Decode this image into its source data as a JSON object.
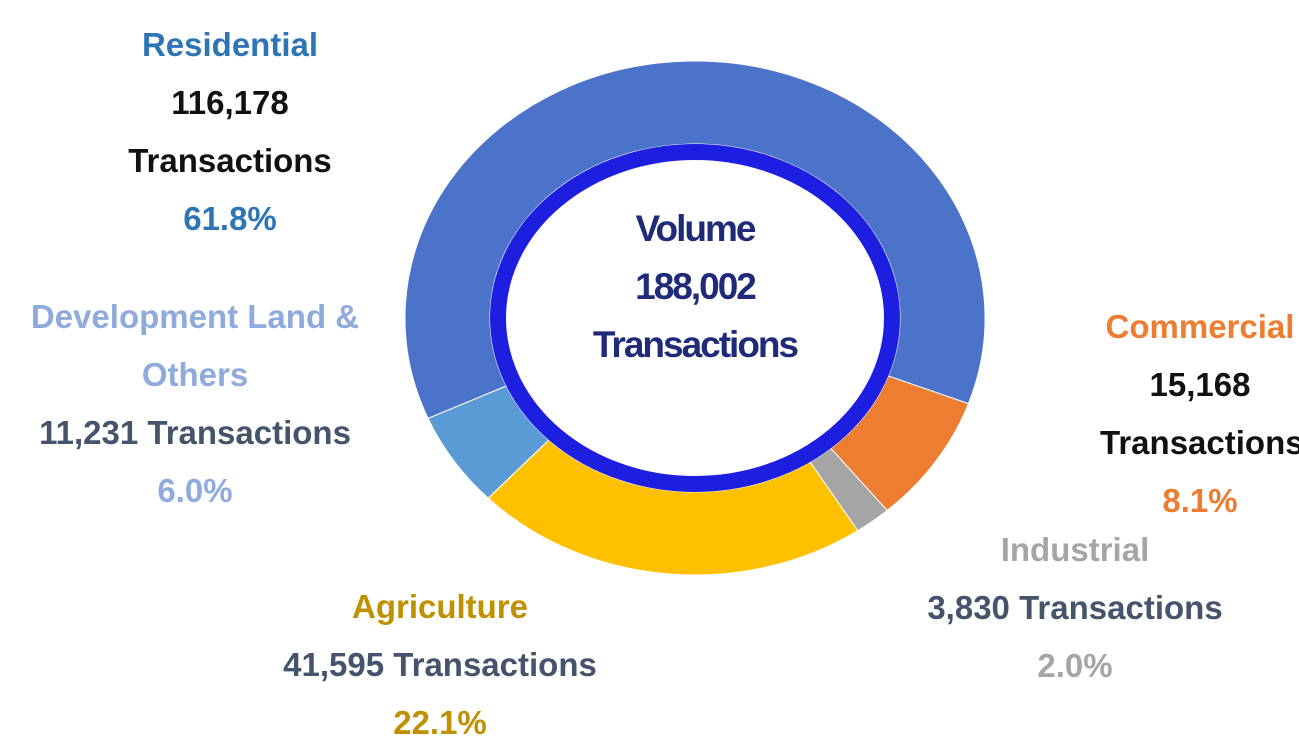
{
  "chart_data": {
    "type": "donut",
    "center_title": "Volume",
    "total": 188002,
    "total_label": "188,002",
    "unit_label": "Transactions",
    "categories": [
      "Residential",
      "Commercial",
      "Industrial",
      "Agriculture",
      "Development Land & Others"
    ],
    "values": [
      116178,
      15168,
      3830,
      41595,
      11231
    ],
    "value_labels": [
      "116,178",
      "15,168",
      "3,830",
      "41,595",
      "11,231"
    ],
    "percentages": [
      61.8,
      8.1,
      2.0,
      22.1,
      6.0
    ],
    "percentage_labels": [
      "61.8%",
      "8.1%",
      "2.0%",
      "22.1%",
      "6.0%"
    ],
    "colors": [
      "#4a73c9",
      "#ed7d31",
      "#a5a5a5",
      "#ffc000",
      "#5b9bd5"
    ]
  }
}
